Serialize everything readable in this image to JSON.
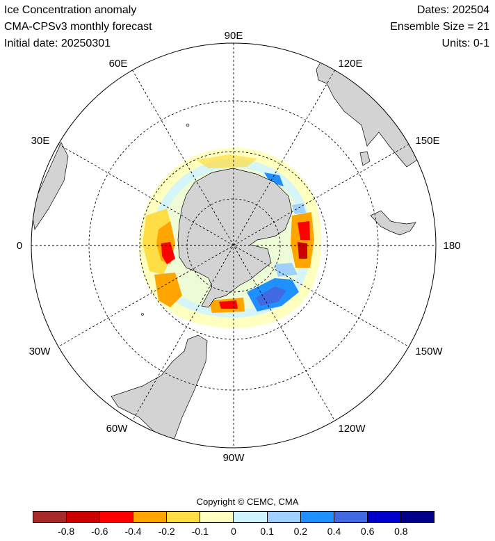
{
  "header": {
    "title": "Ice Concentration anomaly",
    "subtitle": "CMA-CPSv3 monthly forecast",
    "initial_date": "Initial date: 20250301",
    "dates": "Dates: 202504",
    "ensemble": "Ensemble Size = 21",
    "units": "Units: 0-1"
  },
  "map": {
    "projection": "south polar stereographic",
    "longitude_labels": [
      "90E",
      "120E",
      "150E",
      "180",
      "150W",
      "120W",
      "90W",
      "60W",
      "30W",
      "0",
      "30E",
      "60E"
    ],
    "land_color": "#d3d3d3",
    "ocean_color": "#ffffff"
  },
  "colorbar": {
    "colors": [
      "#a52a2a",
      "#cd0000",
      "#ff0000",
      "#ffa500",
      "#ffdd44",
      "#ffffc0",
      "#d0f4ff",
      "#a0d0ff",
      "#1e90ff",
      "#4169e1",
      "#0000cd",
      "#00008b"
    ],
    "tick_labels": [
      "-0.8",
      "-0.6",
      "-0.4",
      "-0.2",
      "-0.1",
      "0",
      "0.1",
      "0.2",
      "0.4",
      "0.6",
      "0.8"
    ]
  },
  "copyright": "Copyright © CEMC, CMA"
}
